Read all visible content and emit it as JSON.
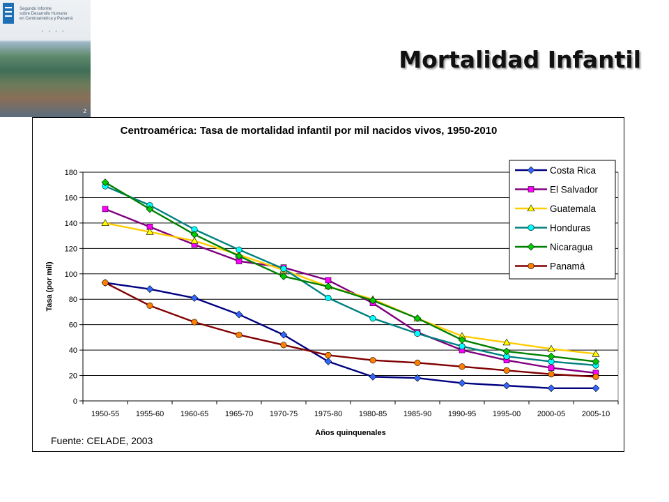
{
  "cover": {
    "title_lines": [
      "Segundo Informe",
      "sobre Desarrollo Humano",
      "en Centroamérica y Panamá"
    ],
    "page_number": "2"
  },
  "slide": {
    "title": "Mortalidad Infantil"
  },
  "chart_data": {
    "type": "line",
    "title": "Centroamérica: Tasa de mortalidad infantil por mil nacidos vivos, 1950-2010",
    "xlabel": "Años quinquenales",
    "ylabel": "Tasa (por mil)",
    "ylim": [
      0,
      180
    ],
    "yticks": [
      0,
      20,
      40,
      60,
      80,
      100,
      120,
      140,
      160,
      180
    ],
    "grid": true,
    "legend_position": "top-right",
    "source": "Fuente: CELADE, 2003",
    "categories": [
      "1950-55",
      "1955-60",
      "1960-65",
      "1965-70",
      "1970-75",
      "1975-80",
      "1980-85",
      "1985-90",
      "1990-95",
      "1995-00",
      "2000-05",
      "2005-10"
    ],
    "series": [
      {
        "name": "Costa Rica",
        "color": "#000080",
        "marker_color": "#3366ff",
        "marker": "diamond",
        "values": [
          93,
          88,
          81,
          68,
          52,
          31,
          19,
          18,
          14,
          12,
          10,
          10
        ]
      },
      {
        "name": "El Salvador",
        "color": "#800080",
        "marker_color": "#ff00ff",
        "marker": "square",
        "values": [
          151,
          137,
          123,
          110,
          105,
          95,
          77,
          54,
          40,
          32,
          26,
          22
        ]
      },
      {
        "name": "Guatemala",
        "color": "#ffcc00",
        "marker_color": "#ffff00",
        "marker": "triangle",
        "values": [
          140,
          133,
          126,
          115,
          103,
          90,
          80,
          65,
          51,
          46,
          41,
          37
        ]
      },
      {
        "name": "Honduras",
        "color": "#008080",
        "marker_color": "#00ffff",
        "marker": "circle",
        "values": [
          169,
          154,
          135,
          119,
          104,
          81,
          65,
          53,
          43,
          35,
          31,
          28
        ]
      },
      {
        "name": "Nicaragua",
        "color": "#008000",
        "marker_color": "#00cc00",
        "marker": "diamond",
        "values": [
          172,
          151,
          131,
          114,
          98,
          90,
          79,
          65,
          48,
          39,
          35,
          31
        ]
      },
      {
        "name": "Panamá",
        "color": "#800000",
        "marker_color": "#ff8000",
        "marker": "circle",
        "values": [
          93,
          75,
          62,
          52,
          44,
          36,
          32,
          30,
          27,
          24,
          21,
          19
        ]
      }
    ]
  }
}
